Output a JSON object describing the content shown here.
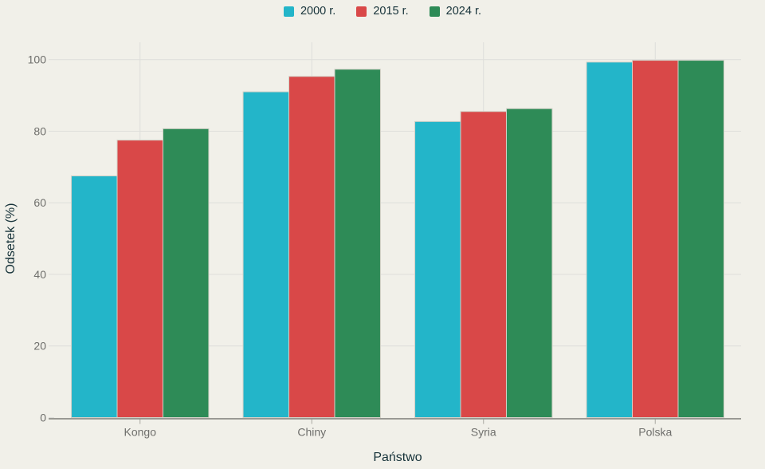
{
  "colors": {
    "background": "#f1f0e9",
    "grid": "#dededa",
    "axis_line": "#7d7d78",
    "tick_mark": "#a9a8a1",
    "tick_text": "#6f6f6c",
    "title_text": "#17333a",
    "bar_stroke": "#d2d1c7"
  },
  "legend": {
    "items": [
      {
        "label": "2000 r.",
        "color": "#23b5c9"
      },
      {
        "label": "2015 r.",
        "color": "#d94848"
      },
      {
        "label": "2024 r.",
        "color": "#2e8b57"
      }
    ]
  },
  "chart_data": {
    "type": "bar",
    "title": "",
    "categories": [
      "Kongo",
      "Chiny",
      "Syria",
      "Polska"
    ],
    "series": [
      {
        "name": "2000 r.",
        "color": "#23b5c9",
        "values": [
          67.5,
          91.0,
          82.7,
          99.3
        ]
      },
      {
        "name": "2015 r.",
        "color": "#d94848",
        "values": [
          77.5,
          95.3,
          85.5,
          99.8
        ]
      },
      {
        "name": "2024 r.",
        "color": "#2e8b57",
        "values": [
          80.7,
          97.3,
          86.3,
          99.8
        ]
      }
    ],
    "xlabel": "Państwo",
    "ylabel": "Odsetek (%)",
    "ylim": [
      0,
      100
    ],
    "yticks": [
      0,
      20,
      40,
      60,
      80,
      100
    ],
    "grid": true,
    "legend_position": "top-center"
  }
}
